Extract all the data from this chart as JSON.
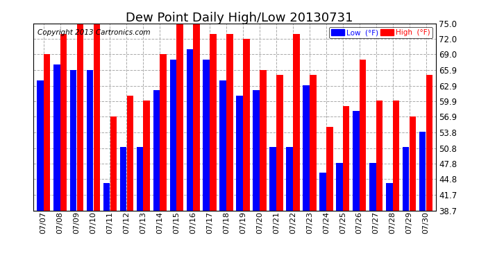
{
  "title": "Dew Point Daily High/Low 20130731",
  "copyright": "Copyright 2013 Cartronics.com",
  "dates": [
    "07/07",
    "07/08",
    "07/09",
    "07/10",
    "07/11",
    "07/12",
    "07/13",
    "07/14",
    "07/15",
    "07/16",
    "07/17",
    "07/18",
    "07/19",
    "07/20",
    "07/21",
    "07/22",
    "07/23",
    "07/24",
    "07/25",
    "07/26",
    "07/27",
    "07/28",
    "07/29",
    "07/30"
  ],
  "low_values": [
    64,
    67,
    66,
    66,
    44,
    51,
    51,
    62,
    68,
    70,
    68,
    64,
    61,
    62,
    51,
    51,
    63,
    46,
    48,
    58,
    48,
    44,
    51,
    54
  ],
  "high_values": [
    69,
    73,
    75,
    75,
    57,
    61,
    60,
    69,
    75,
    75,
    73,
    73,
    72,
    66,
    65,
    73,
    65,
    55,
    59,
    68,
    60,
    60,
    57,
    65
  ],
  "low_color": "#0000ff",
  "high_color": "#ff0000",
  "ylim_min": 38.7,
  "ylim_max": 75.0,
  "yticks": [
    38.7,
    41.7,
    44.8,
    47.8,
    50.8,
    53.8,
    56.9,
    59.9,
    62.9,
    65.9,
    69.0,
    72.0,
    75.0
  ],
  "background_color": "#ffffff",
  "plot_background_color": "#ffffff",
  "grid_color": "#aaaaaa",
  "title_fontsize": 13,
  "tick_fontsize": 8.5,
  "copyright_fontsize": 7.5,
  "legend_low_label": "Low  (°F)",
  "legend_high_label": "High  (°F)"
}
